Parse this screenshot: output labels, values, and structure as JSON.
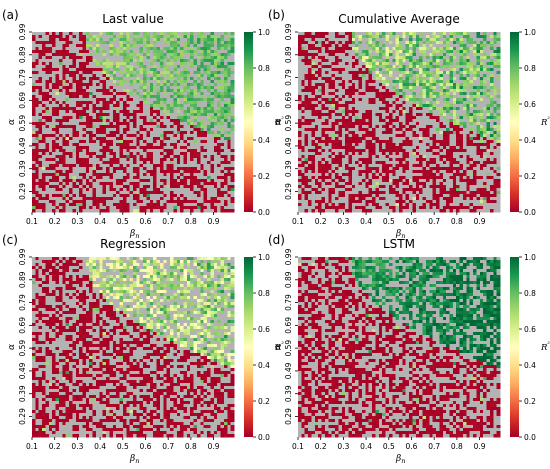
{
  "figure": {
    "colors": {
      "missing": "#b3b3b3",
      "colormap": [
        "#a50026",
        "#d73027",
        "#f46d43",
        "#fdae61",
        "#fee08b",
        "#ffffbf",
        "#d9ef8b",
        "#a6d96a",
        "#66bd63",
        "#1a9850",
        "#006837"
      ]
    }
  },
  "chart_data": [
    {
      "type": "heatmap",
      "panel_label": "(a)",
      "title": "Last value",
      "xlabel": "βn",
      "ylabel": "α",
      "x_ticks": [
        "0.1",
        "0.2",
        "0.3",
        "0.4",
        "0.5",
        "0.6",
        "0.7",
        "0.8",
        "0.9"
      ],
      "y_ticks": [
        "0.29",
        "0.39",
        "0.49",
        "0.59",
        "0.69",
        "0.79",
        "0.89",
        "0.99"
      ],
      "x_range": [
        0.1,
        0.99
      ],
      "y_range": [
        0.2,
        0.99
      ],
      "grid_size": [
        60,
        60
      ],
      "colorbar": {
        "label": "R²",
        "range": [
          0.0,
          1.0
        ],
        "ticks": [
          "0.0",
          "0.2",
          "0.4",
          "0.6",
          "0.8",
          "1.0"
        ]
      },
      "region": {
        "boundary": "upper-right",
        "r2_min": 0.6,
        "r2_max": 0.85,
        "seed": 11
      }
    },
    {
      "type": "heatmap",
      "panel_label": "(b)",
      "title": "Cumulative Average",
      "xlabel": "βn",
      "ylabel": "α",
      "x_ticks": [
        "0.1",
        "0.2",
        "0.3",
        "0.4",
        "0.5",
        "0.6",
        "0.7",
        "0.8",
        "0.9"
      ],
      "y_ticks": [
        "0.29",
        "0.39",
        "0.49",
        "0.59",
        "0.69",
        "0.79",
        "0.89",
        "0.99"
      ],
      "x_range": [
        0.1,
        0.99
      ],
      "y_range": [
        0.2,
        0.99
      ],
      "grid_size": [
        60,
        60
      ],
      "colorbar": {
        "label": "R²",
        "range": [
          0.0,
          1.0
        ],
        "ticks": [
          "0.0",
          "0.2",
          "0.4",
          "0.6",
          "0.8",
          "1.0"
        ]
      },
      "region": {
        "boundary": "upper-right",
        "r2_min": 0.45,
        "r2_max": 0.9,
        "seed": 23
      }
    },
    {
      "type": "heatmap",
      "panel_label": "(c)",
      "title": "Regression",
      "xlabel": "βn",
      "ylabel": "α",
      "x_ticks": [
        "0.1",
        "0.2",
        "0.3",
        "0.4",
        "0.5",
        "0.6",
        "0.7",
        "0.8",
        "0.9"
      ],
      "y_ticks": [
        "0.29",
        "0.39",
        "0.49",
        "0.59",
        "0.69",
        "0.79",
        "0.89",
        "0.99"
      ],
      "x_range": [
        0.1,
        0.99
      ],
      "y_range": [
        0.2,
        0.99
      ],
      "grid_size": [
        60,
        60
      ],
      "colorbar": {
        "label": "R²",
        "range": [
          0.0,
          1.0
        ],
        "ticks": [
          "0.0",
          "0.2",
          "0.4",
          "0.6",
          "0.8",
          "1.0"
        ]
      },
      "region": {
        "boundary": "upper-right",
        "r2_min": 0.3,
        "r2_max": 0.85,
        "seed": 37
      }
    },
    {
      "type": "heatmap",
      "panel_label": "(d)",
      "title": "LSTM",
      "xlabel": "βn",
      "ylabel": "α",
      "x_ticks": [
        "0.1",
        "0.2",
        "0.3",
        "0.4",
        "0.5",
        "0.6",
        "0.7",
        "0.8",
        "0.9"
      ],
      "y_ticks": [
        "0.29",
        "0.39",
        "0.49",
        "0.59",
        "0.69",
        "0.79",
        "0.89",
        "0.99"
      ],
      "x_range": [
        0.1,
        0.99
      ],
      "y_range": [
        0.2,
        0.99
      ],
      "grid_size": [
        60,
        60
      ],
      "colorbar": {
        "label": "R²",
        "range": [
          0.0,
          1.0
        ],
        "ticks": [
          "0.0",
          "0.2",
          "0.4",
          "0.6",
          "0.8",
          "1.0"
        ]
      },
      "region": {
        "boundary": "upper-right",
        "r2_min": 0.8,
        "r2_max": 1.0,
        "seed": 51
      }
    }
  ]
}
